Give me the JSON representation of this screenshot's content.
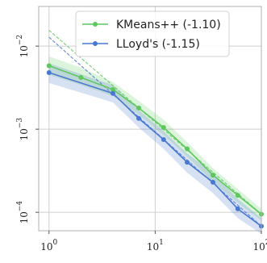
{
  "chart_data": {
    "type": "line",
    "title": "",
    "xlabel": "",
    "ylabel": "",
    "xscale": "log",
    "yscale": "log",
    "xlim": [
      0.8,
      100
    ],
    "ylim": [
      6e-05,
      0.03
    ],
    "grid": true,
    "legend_position": "top-right",
    "x_ticks": [
      {
        "value": 1,
        "base": "10",
        "exp": "0"
      },
      {
        "value": 10,
        "base": "10",
        "exp": "1"
      },
      {
        "value": 100,
        "base": "10",
        "exp": "2"
      }
    ],
    "y_ticks": [
      {
        "value": 0.0001,
        "base": "10",
        "exp": "−4"
      },
      {
        "value": 0.001,
        "base": "10",
        "exp": "−3"
      },
      {
        "value": 0.01,
        "base": "10",
        "exp": "−2"
      }
    ],
    "series": [
      {
        "name": "KMeans++ (-1.10)",
        "color": "#5fc75f",
        "x": [
          1,
          2,
          4,
          7,
          12,
          20,
          35,
          60,
          100
        ],
        "y": [
          0.0058,
          0.0042,
          0.003,
          0.0018,
          0.00105,
          0.00058,
          0.00028,
          0.00016,
          9.5e-05
        ],
        "y_low": [
          0.0045,
          0.0034,
          0.0025,
          0.0015,
          0.00085,
          0.00047,
          0.00023,
          0.00013,
          8e-05
        ],
        "y_high": [
          0.0075,
          0.0055,
          0.0037,
          0.0022,
          0.0013,
          0.0007,
          0.00034,
          0.00019,
          0.00011
        ],
        "fit": {
          "x": [
            1,
            100
          ],
          "y": [
            0.0155,
            9.5e-05
          ]
        }
      },
      {
        "name": "LLoyd's (-1.15)",
        "color": "#4878cf",
        "x": [
          1,
          4,
          7,
          12,
          20,
          35,
          60,
          100
        ],
        "y": [
          0.0048,
          0.0027,
          0.00135,
          0.00075,
          0.0004,
          0.00023,
          0.00011,
          6.8e-05
        ],
        "y_low": [
          0.0036,
          0.0021,
          0.00105,
          0.00058,
          0.0003,
          0.00017,
          8.5e-05,
          5.5e-05
        ],
        "y_high": [
          0.0062,
          0.0034,
          0.0017,
          0.00095,
          0.00051,
          0.0003,
          0.000145,
          8.5e-05
        ],
        "fit": {
          "x": [
            1,
            100
          ],
          "y": [
            0.0128,
            6.8e-05
          ]
        }
      }
    ]
  }
}
